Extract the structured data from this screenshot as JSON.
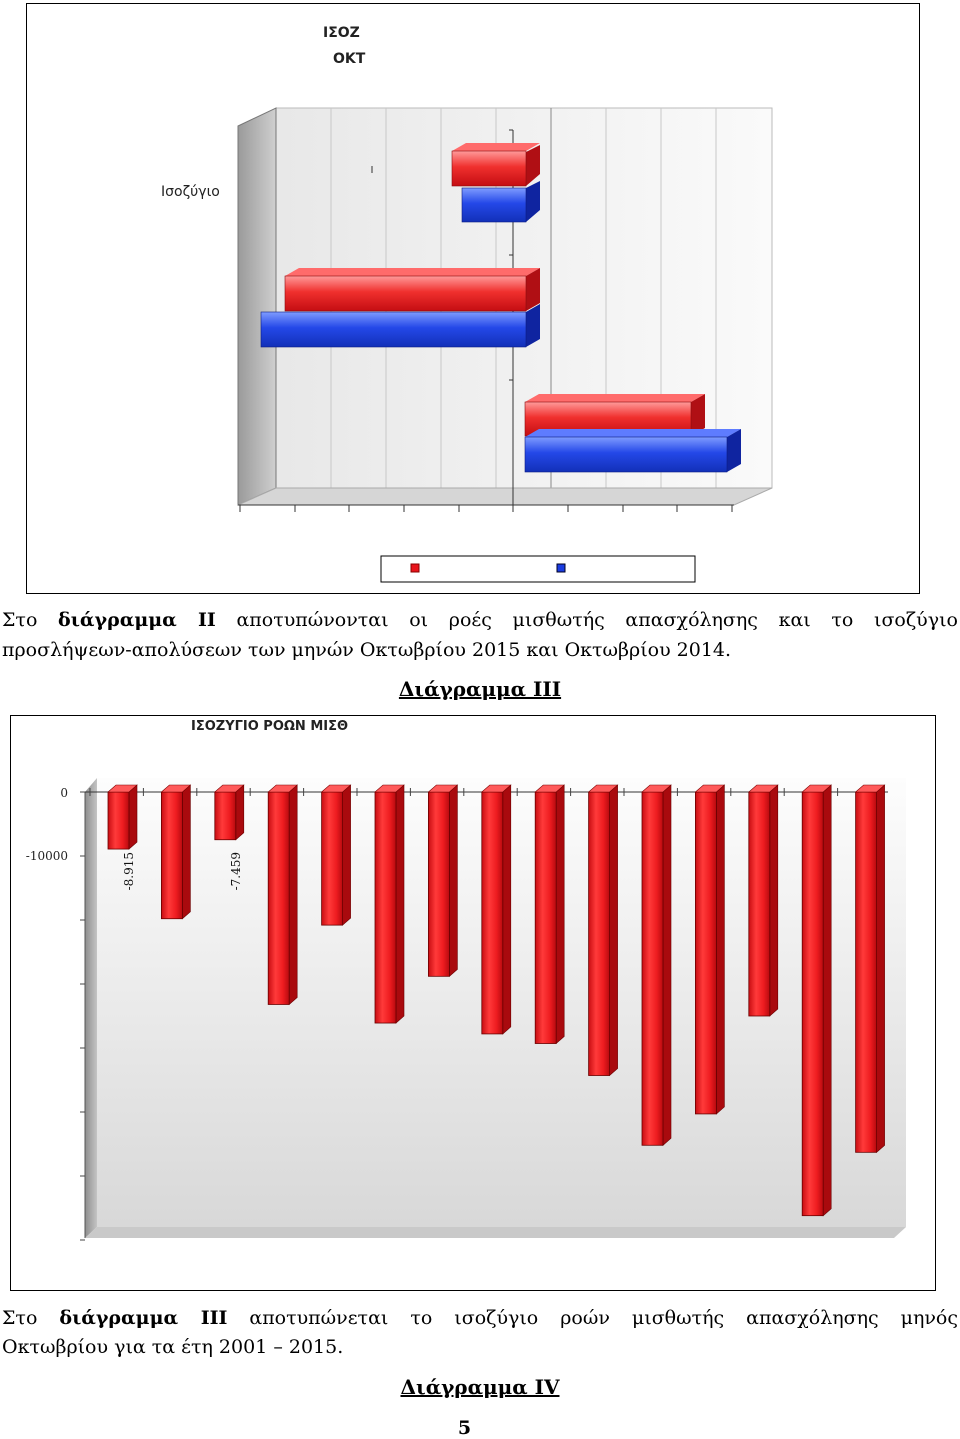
{
  "chart2": {
    "title_line1": "ΙΣΟΖ",
    "title_line2": "ΟΚΤ",
    "category_label": "Ισοζύγιο",
    "legend_colors": [
      "#e8141b",
      "#1a3ce0"
    ]
  },
  "paragraph1": {
    "prefix": "Στο ",
    "bold": "διάγραμμα ΙΙ",
    "rest": " αποτυπώνονται οι ροές μισθωτής απασχόλησης και το ισοζύγιο",
    "line2": "προσλήψεων-απολύσεων των μηνών Οκτωβρίου 2015 και Οκτωβρίου 2014."
  },
  "heading3": "Διάγραμμα ΙΙΙ",
  "chart3": {
    "title": "ΙΣΟΖΥΓΙΟ ΡΟΩΝ ΜΙΣΘ",
    "chart_data": {
      "type": "bar",
      "values": [
        -8915,
        -19800,
        -7459,
        -33200,
        -20800,
        -36100,
        -28800,
        -37800,
        -39300,
        -44300,
        -55200,
        -50300,
        -35000,
        -66200,
        -56300
      ],
      "data_labels": [
        "-8.915",
        "",
        "-7.459",
        "",
        "",
        "",
        "",
        "",
        "",
        "",
        "",
        "",
        "",
        "",
        ""
      ],
      "yticks": [
        "0",
        "-10000"
      ],
      "ylim": [
        -70000,
        0
      ],
      "color": "#e8141b"
    }
  },
  "paragraph2": {
    "prefix": "Στο ",
    "bold": "διάγραμμα ΙΙΙ",
    "rest": " αποτυπώνεται το ισοζύγιο ροών μισθωτής απασχόλησης μηνός",
    "line2": "Οκτωβρίου για τα έτη 2001 – 2015."
  },
  "heading4": "Διάγραμμα ΙV",
  "page_number": "5"
}
